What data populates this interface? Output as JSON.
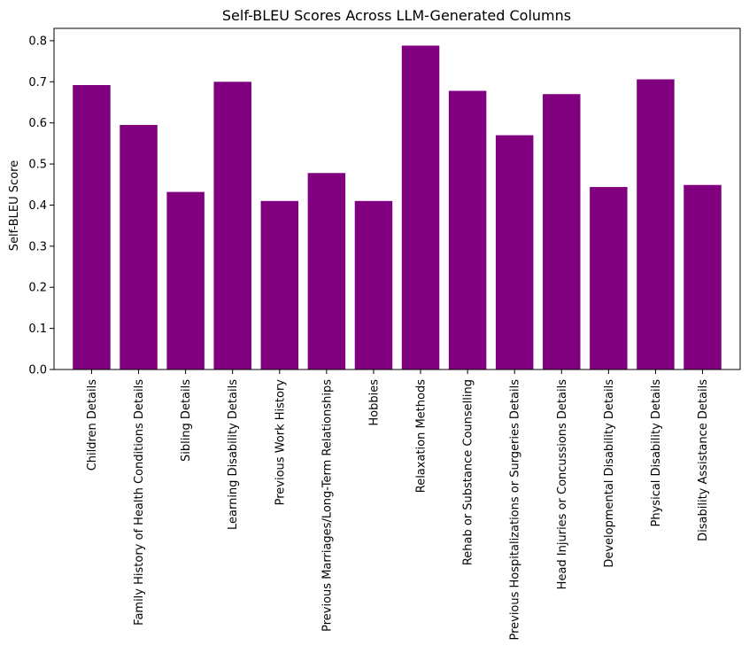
{
  "chart_data": {
    "type": "bar",
    "title": "Self-BLEU Scores Across LLM-Generated Columns",
    "xlabel": "",
    "ylabel": "Self-BLEU Score",
    "ylim": [
      0,
      0.83
    ],
    "yticks": [
      0.0,
      0.1,
      0.2,
      0.3,
      0.4,
      0.5,
      0.6,
      0.7,
      0.8
    ],
    "ytick_labels": [
      "0.0",
      "0.1",
      "0.2",
      "0.3",
      "0.4",
      "0.5",
      "0.6",
      "0.7",
      "0.8"
    ],
    "categories": [
      "Children Details",
      "Family History of Health Conditions Details",
      "Sibling Details",
      "Learning Disability Details",
      "Previous Work History",
      "Previous Marriages/Long-Term Relationships",
      "Hobbies",
      "Relaxation Methods",
      "Rehab or Substance Counselling",
      "Previous Hospitalizations or Surgeries Details",
      "Head Injuries or Concussions Details",
      "Developmental Disability Details",
      "Physical Disability Details",
      "Disability Assistance Details"
    ],
    "values": [
      0.692,
      0.595,
      0.432,
      0.7,
      0.41,
      0.478,
      0.41,
      0.788,
      0.678,
      0.57,
      0.67,
      0.444,
      0.706,
      0.449
    ],
    "grid": false,
    "legend": "none",
    "colors": {
      "bar": "#800080",
      "axis": "#000000",
      "background": "#ffffff"
    }
  }
}
